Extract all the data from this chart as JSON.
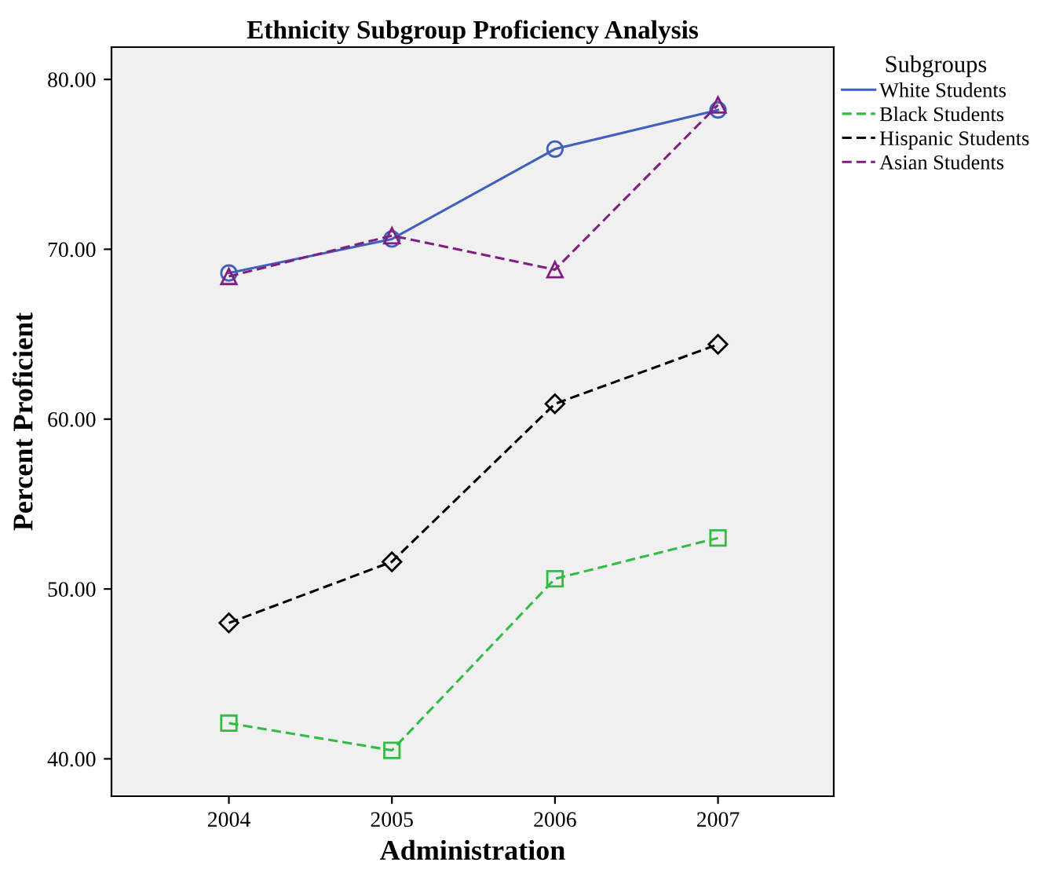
{
  "chart_data": {
    "type": "line",
    "title": "Ethnicity Subgroup Proficiency Analysis",
    "xlabel": "Administration",
    "ylabel": "Percent Proficient",
    "legend_title": "Subgroups",
    "legend": "right",
    "x": [
      2004,
      2005,
      2006,
      2007
    ],
    "xlim": [
      2003.28,
      2007.71
    ],
    "xticks": [
      2004,
      2005,
      2006,
      2007
    ],
    "ylim": [
      37.8,
      81.9
    ],
    "yticks": [
      {
        "value": 40,
        "label": "40.00"
      },
      {
        "value": 50,
        "label": "50.00"
      },
      {
        "value": 60,
        "label": "60.00"
      },
      {
        "value": 70,
        "label": "70.00"
      },
      {
        "value": 80,
        "label": "80.00"
      }
    ],
    "grid": false,
    "series": [
      {
        "name": "White Students",
        "color": "#4060c0",
        "marker": "circle",
        "line_style": "solid",
        "values": [
          68.6,
          70.6,
          75.9,
          78.2
        ]
      },
      {
        "name": "Black Students",
        "color": "#33bb44",
        "marker": "square",
        "line_style": "dashed",
        "values": [
          42.1,
          40.5,
          50.6,
          53.0
        ]
      },
      {
        "name": "Hispanic Students",
        "color": "#000000",
        "marker": "diamond",
        "line_style": "dashed",
        "values": [
          48.0,
          51.6,
          60.9,
          64.4
        ]
      },
      {
        "name": "Asian Students",
        "color": "#7f1f7f",
        "marker": "triangle",
        "line_style": "dashed",
        "values": [
          68.4,
          70.8,
          68.8,
          78.5
        ]
      }
    ]
  }
}
